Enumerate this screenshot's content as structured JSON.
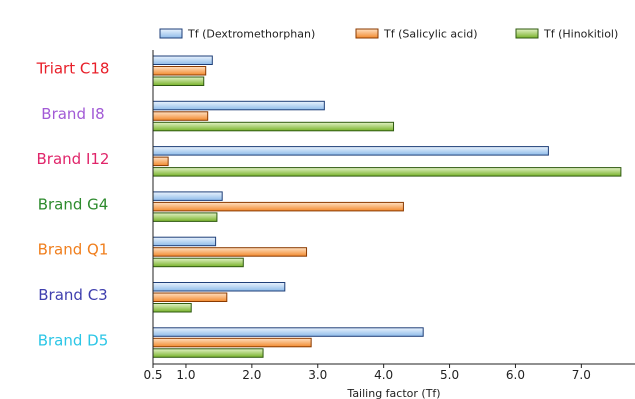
{
  "chart_data": {
    "type": "bar",
    "orientation": "horizontal",
    "xlabel": "Tailing factor (Tf)",
    "xlim": [
      0.5,
      8.0
    ],
    "x_ticks": [
      "0.5",
      "1.0",
      "2.0",
      "3.0",
      "4.0",
      "5.0",
      "6.0",
      "7.0",
      "8."
    ],
    "categories": [
      "Triart C18",
      "Brand I8",
      "Brand I12",
      "Brand G4",
      "Brand Q1",
      "Brand C3",
      "Brand D5"
    ],
    "category_colors": [
      "#e8202a",
      "#a25ad6",
      "#e0256a",
      "#2e8b2e",
      "#f07f1e",
      "#3f3fae",
      "#2cc6e6"
    ],
    "legend_position": "top",
    "series": [
      {
        "name": "Tf (Dextromethorphan)",
        "color": "#a9cdf3",
        "values": [
          1.4,
          3.1,
          6.5,
          1.55,
          1.45,
          2.5,
          4.6
        ]
      },
      {
        "name": "Tf (Salicylic acid)",
        "color": "#f9a65a",
        "values": [
          1.3,
          1.33,
          0.73,
          4.3,
          2.83,
          1.62,
          2.9
        ]
      },
      {
        "name": "Tf (Hinokitiol)",
        "color": "#95c94d",
        "values": [
          1.27,
          4.15,
          7.6,
          1.47,
          1.87,
          1.08,
          2.17
        ]
      }
    ]
  }
}
